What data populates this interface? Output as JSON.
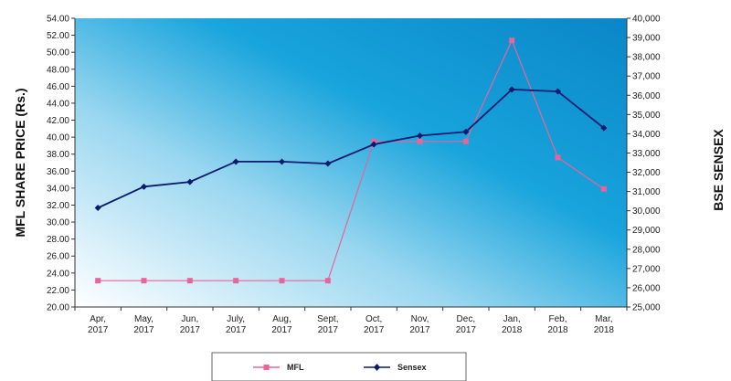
{
  "chart_data": {
    "type": "line",
    "title": "",
    "categories": [
      [
        "Apr,",
        "2017"
      ],
      [
        "May,",
        "2017"
      ],
      [
        "Jun,",
        "2017"
      ],
      [
        "July,",
        "2017"
      ],
      [
        "Aug,",
        "2017"
      ],
      [
        "Sept,",
        "2017"
      ],
      [
        "Oct,",
        "2017"
      ],
      [
        "Nov,",
        "2017"
      ],
      [
        "Dec,",
        "2017"
      ],
      [
        "Jan,",
        "2018"
      ],
      [
        "Feb,",
        "2018"
      ],
      [
        "Mar,",
        "2018"
      ]
    ],
    "ylabel_left": "MFL SHARE PRICE (Rs.)",
    "ylabel_right": "BSE SENSEX",
    "ylim_left": [
      20,
      54
    ],
    "ylim_right": [
      25000,
      40000
    ],
    "left_ticks": [
      "20.00",
      "22.00",
      "24.00",
      "26.00",
      "28.00",
      "30.00",
      "32.00",
      "34.00",
      "36.00",
      "38.00",
      "40.00",
      "42.00",
      "44.00",
      "46.00",
      "48.00",
      "50.00",
      "52.00",
      "54.00"
    ],
    "right_ticks": [
      "25,000",
      "26,000",
      "27,000",
      "28,000",
      "29,000",
      "30,000",
      "31,000",
      "32,000",
      "33,000",
      "34,000",
      "35,000",
      "36,000",
      "37,000",
      "38,000",
      "39,000",
      "40,000"
    ],
    "grid": false,
    "legend_position": "bottom",
    "series": [
      {
        "name": "MFL",
        "axis": "left",
        "color": "#e8649a",
        "marker": "square",
        "values": [
          23.1,
          23.1,
          23.1,
          23.1,
          23.1,
          23.1,
          39.5,
          39.5,
          39.5,
          51.4,
          37.6,
          33.9
        ]
      },
      {
        "name": "Sensex",
        "axis": "right",
        "color": "#0a1a6e",
        "marker": "diamond",
        "values": [
          30150,
          31250,
          31500,
          32550,
          32550,
          32450,
          33450,
          33900,
          34100,
          36300,
          36200,
          34300
        ]
      }
    ]
  }
}
